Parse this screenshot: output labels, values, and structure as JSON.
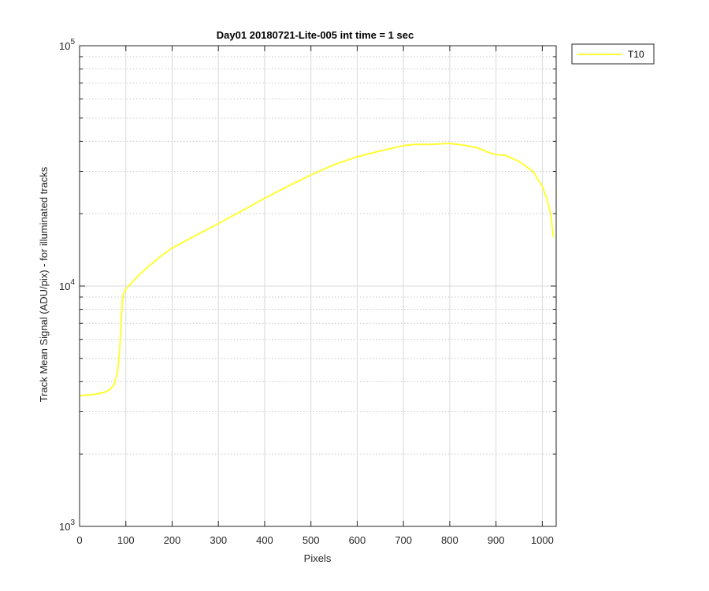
{
  "chart_data": {
    "type": "line",
    "title": "Day01 20180721-Lite-005 int time = 1 sec",
    "xlabel": "Pixels",
    "ylabel": "Track Mean Signal (ADU/pix) - for illuminated tracks",
    "xlim": [
      0,
      1030
    ],
    "ylim": [
      1000,
      100000
    ],
    "yscale": "log",
    "xticks": [
      0,
      100,
      200,
      300,
      400,
      500,
      600,
      700,
      800,
      900,
      1000
    ],
    "xtick_labels": [
      "0",
      "100",
      "200",
      "300",
      "400",
      "500",
      "600",
      "700",
      "800",
      "900",
      "1000"
    ],
    "yticks": [
      {
        "value": 1000,
        "base": "10",
        "exp": "3"
      },
      {
        "value": 10000,
        "base": "10",
        "exp": "4"
      },
      {
        "value": 100000,
        "base": "10",
        "exp": "5"
      }
    ],
    "grid": true,
    "minor_grid": true,
    "legend": {
      "position": "outside-top-right"
    },
    "colors": {
      "series": "#ffff33",
      "axis": "#262626",
      "grid": "#d9d9d9"
    },
    "series": [
      {
        "name": "T10",
        "x": [
          0,
          20,
          40,
          55,
          65,
          75,
          82,
          87,
          90,
          93,
          95,
          100,
          110,
          120,
          130,
          150,
          175,
          200,
          250,
          300,
          350,
          400,
          450,
          500,
          550,
          600,
          650,
          700,
          720,
          760,
          800,
          830,
          860,
          880,
          900,
          920,
          950,
          980,
          1000,
          1010,
          1018,
          1024
        ],
        "y": [
          3500,
          3520,
          3560,
          3620,
          3700,
          3900,
          4400,
          5500,
          7200,
          8900,
          9300,
          9700,
          10200,
          10700,
          11200,
          12100,
          13300,
          14400,
          16200,
          18200,
          20500,
          23200,
          26000,
          29000,
          32000,
          34500,
          36500,
          38400,
          38800,
          38900,
          39200,
          38600,
          37600,
          36200,
          35200,
          35000,
          33000,
          30000,
          26000,
          23000,
          20000,
          16000
        ]
      }
    ]
  }
}
